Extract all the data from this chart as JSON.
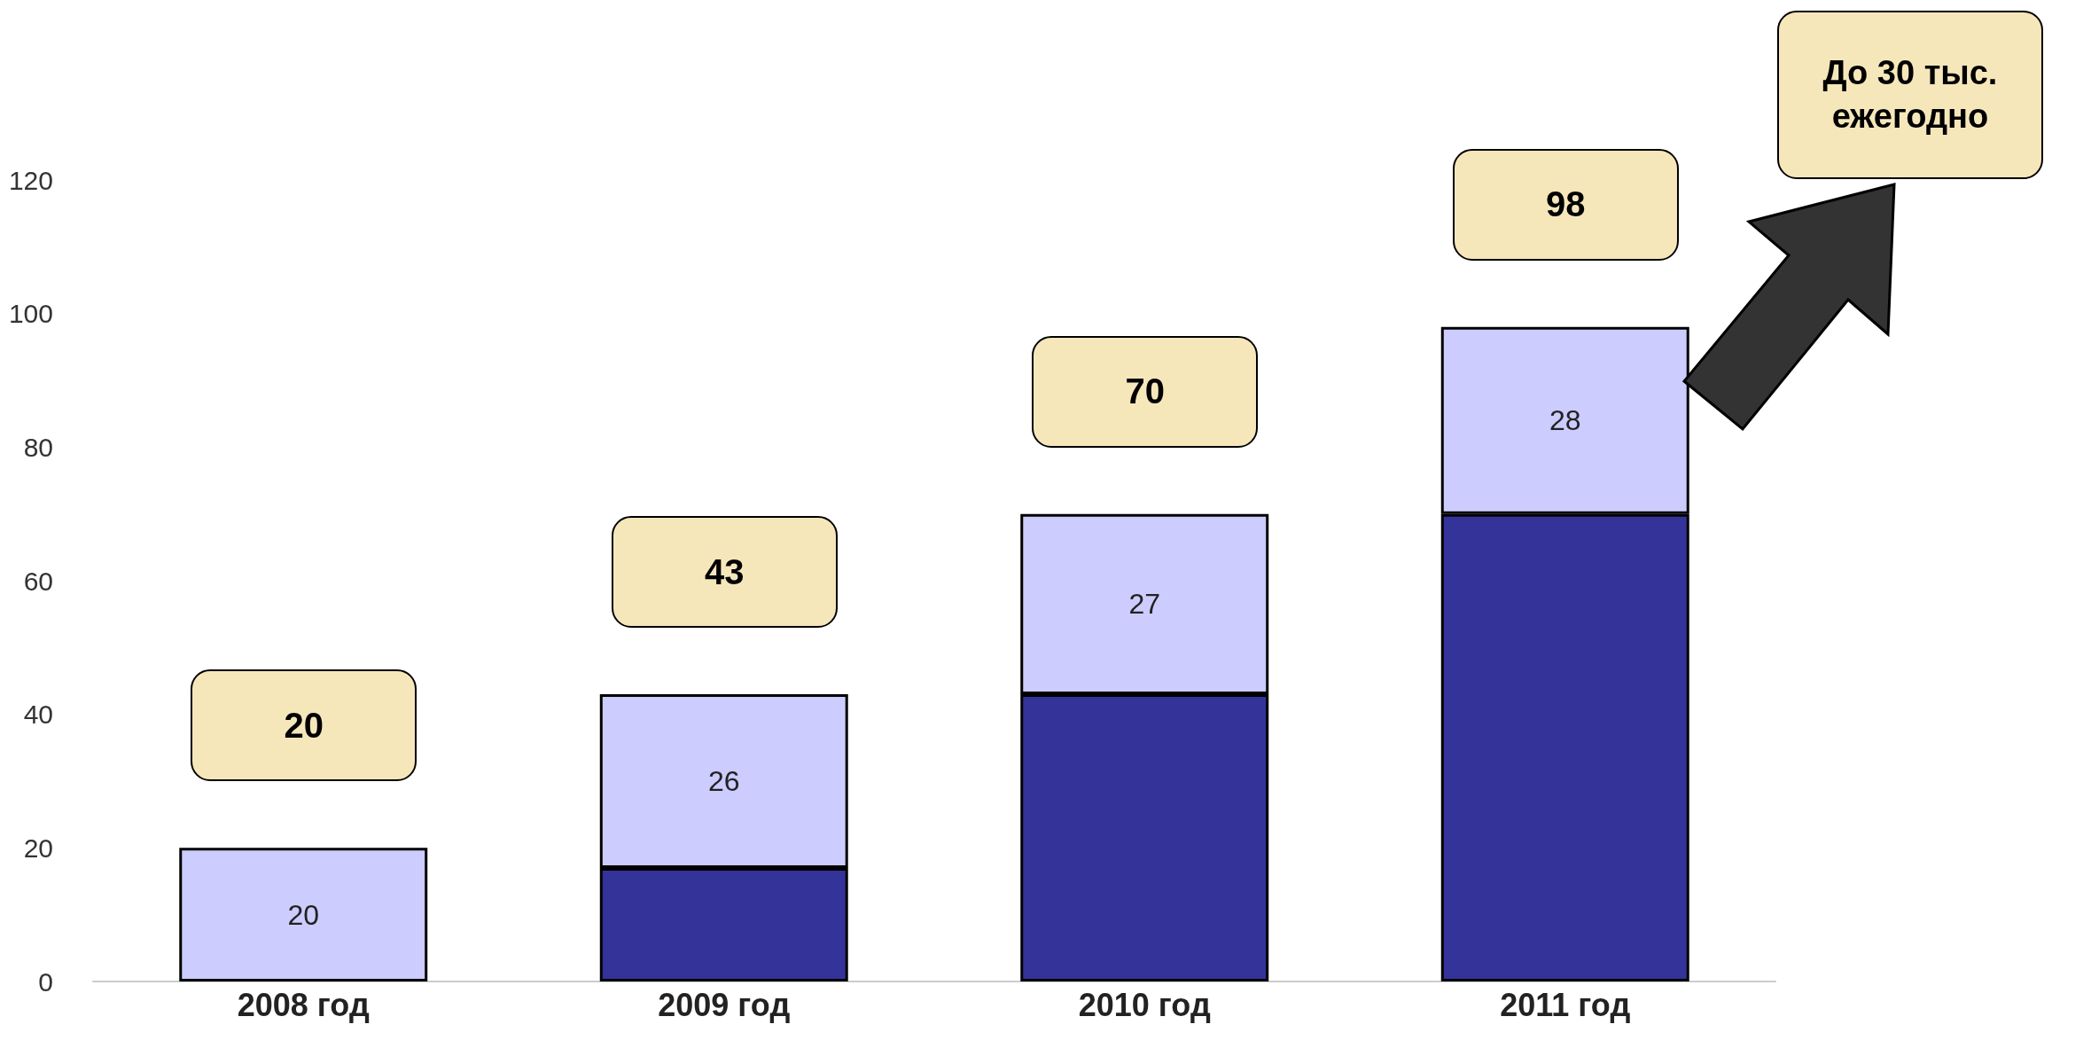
{
  "chart_data": {
    "type": "bar",
    "stacked": true,
    "categories": [
      "2008 год",
      "2009 год",
      "2010 год",
      "2011 год"
    ],
    "series": [
      {
        "color": "#343399",
        "values": [
          null,
          17,
          43,
          70
        ]
      },
      {
        "color": "#ccccff",
        "values": [
          20,
          26,
          27,
          28
        ],
        "value_labels": [
          "20",
          "26",
          "27",
          "28"
        ]
      }
    ],
    "totals": [
      "20",
      "43",
      "70",
      "98"
    ],
    "ylim": [
      0,
      120
    ],
    "yticks": [
      0,
      20,
      40,
      60,
      80,
      100,
      120
    ],
    "grid": false,
    "annotations": [
      "До 30 тыс. ежегодно"
    ]
  }
}
